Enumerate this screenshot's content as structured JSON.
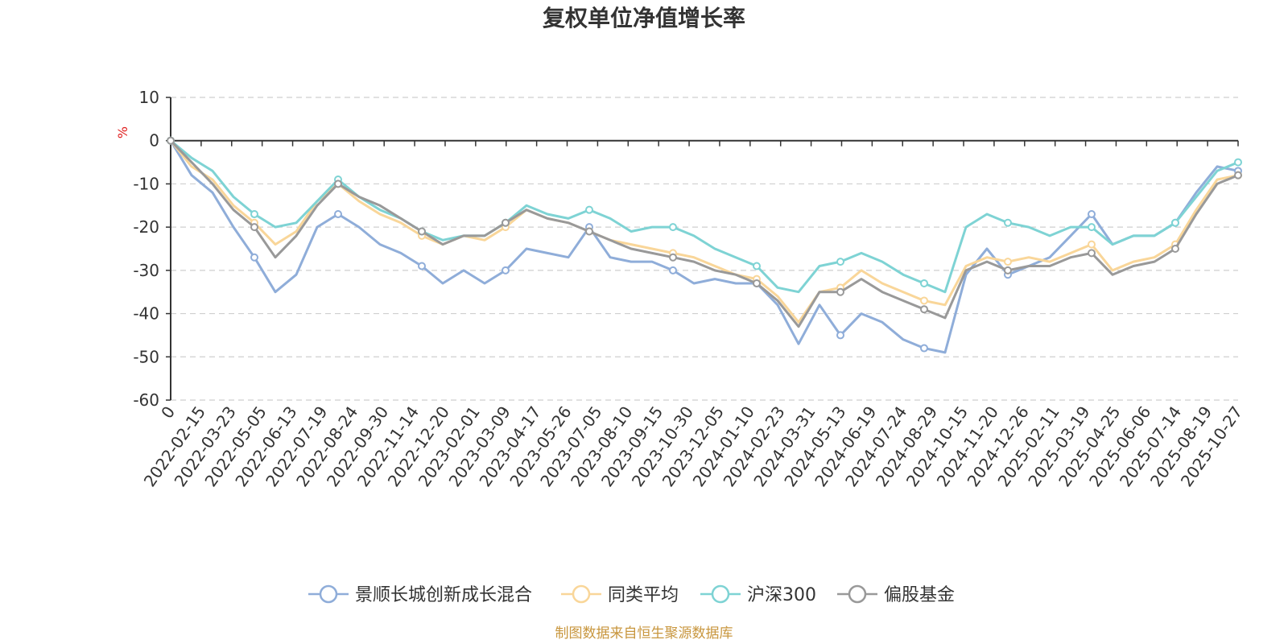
{
  "chart_data": {
    "type": "line",
    "title": "复权单位净值增长率",
    "ylabel": "%",
    "ylim": [
      -60,
      10
    ],
    "yticks": [
      10,
      0,
      -10,
      -20,
      -30,
      -40,
      -50,
      -60
    ],
    "grid": true,
    "legend_position": "bottom",
    "source": "制图数据来自恒生聚源数据库",
    "x_tick_labels": [
      "0",
      "2022-02-15",
      "2022-03-23",
      "2022-05-05",
      "2022-06-13",
      "2022-07-19",
      "2022-08-24",
      "2022-09-30",
      "2022-11-14",
      "2022-12-20",
      "2023-02-01",
      "2023-03-09",
      "2023-04-17",
      "2023-05-26",
      "2023-07-05",
      "2023-08-10",
      "2023-09-15",
      "2023-10-30",
      "2023-12-05",
      "2024-01-10",
      "2024-02-23",
      "2024-03-31",
      "2024-05-13",
      "2024-06-19",
      "2024-07-24",
      "2024-08-29",
      "2024-10-15",
      "2024-11-20",
      "2024-12-26",
      "2025-02-11",
      "2025-03-19",
      "2025-04-25",
      "2025-06-06",
      "2025-07-14",
      "2025-08-19",
      "2025-10-27"
    ],
    "series": [
      {
        "name": "景顺长城创新成长混合",
        "color": "#8fadd9",
        "values": [
          0,
          -8,
          -12,
          -20,
          -27,
          -35,
          -31,
          -20,
          -17,
          -20,
          -24,
          -26,
          -29,
          -33,
          -30,
          -33,
          -30,
          -25,
          -26,
          -27,
          -20,
          -27,
          -28,
          -28,
          -30,
          -33,
          -32,
          -33,
          -33,
          -38,
          -47,
          -38,
          -45,
          -40,
          -42,
          -46,
          -48,
          -49,
          -31,
          -25,
          -31,
          -29,
          -27,
          -22,
          -17,
          -24,
          -22,
          -22,
          -19,
          -12,
          -6,
          -7
        ]
      },
      {
        "name": "同类平均",
        "color": "#f9d699",
        "values": [
          0,
          -6,
          -9,
          -15,
          -19,
          -24,
          -21,
          -14,
          -10,
          -14,
          -17,
          -19,
          -22,
          -24,
          -22,
          -23,
          -20,
          -16,
          -18,
          -19,
          -21,
          -23,
          -24,
          -25,
          -26,
          -27,
          -29,
          -31,
          -32,
          -36,
          -42,
          -35,
          -34,
          -30,
          -33,
          -35,
          -37,
          -38,
          -29,
          -27,
          -28,
          -27,
          -28,
          -26,
          -24,
          -30,
          -28,
          -27,
          -24,
          -16,
          -9,
          -8
        ]
      },
      {
        "name": "沪深300",
        "color": "#7ed3d4",
        "values": [
          0,
          -4,
          -7,
          -13,
          -17,
          -20,
          -19,
          -14,
          -9,
          -13,
          -16,
          -18,
          -21,
          -23,
          -22,
          -22,
          -19,
          -15,
          -17,
          -18,
          -16,
          -18,
          -21,
          -20,
          -20,
          -22,
          -25,
          -27,
          -29,
          -34,
          -35,
          -29,
          -28,
          -26,
          -28,
          -31,
          -33,
          -35,
          -20,
          -17,
          -19,
          -20,
          -22,
          -20,
          -20,
          -24,
          -22,
          -22,
          -19,
          -13,
          -7,
          -5
        ]
      },
      {
        "name": "偏股基金",
        "color": "#999999",
        "values": [
          0,
          -5,
          -10,
          -16,
          -20,
          -27,
          -22,
          -15,
          -10,
          -13,
          -15,
          -18,
          -21,
          -24,
          -22,
          -22,
          -19,
          -16,
          -18,
          -19,
          -21,
          -23,
          -25,
          -26,
          -27,
          -28,
          -30,
          -31,
          -33,
          -37,
          -43,
          -35,
          -35,
          -32,
          -35,
          -37,
          -39,
          -41,
          -30,
          -28,
          -30,
          -29,
          -29,
          -27,
          -26,
          -31,
          -29,
          -28,
          -25,
          -17,
          -10,
          -8
        ]
      }
    ]
  }
}
